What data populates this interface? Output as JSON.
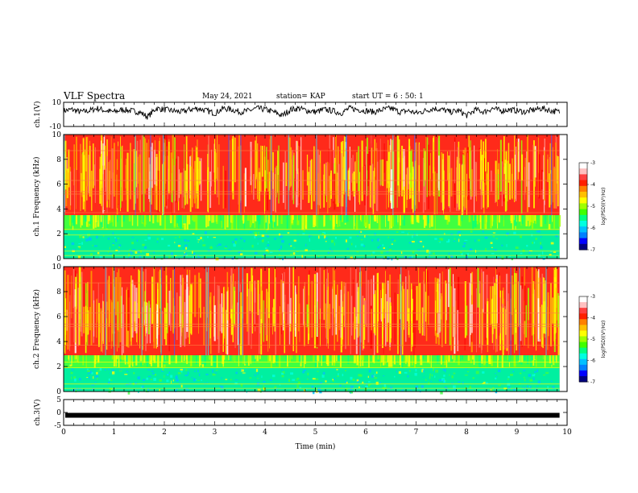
{
  "header": {
    "title": "VLF Spectra",
    "date": "May 24, 2021",
    "station": "station= KAP",
    "start": "start UT =  6 : 50: 1"
  },
  "chart_data": [
    {
      "type": "line",
      "panel": "ch1-waveform",
      "ylabel": "ch.1(V)",
      "ylim": [
        -10,
        10
      ],
      "y_ticks": [
        "10",
        "-10"
      ],
      "x_range": [
        0,
        10
      ],
      "data_end": 9.85,
      "y_values_approx": [
        3,
        4,
        2,
        3,
        5,
        3,
        2,
        4,
        3,
        2,
        -2,
        5,
        4,
        3,
        2,
        4,
        5,
        3,
        1,
        5,
        4,
        2,
        3,
        5,
        4,
        2,
        -1,
        4,
        5,
        3,
        2,
        4,
        3,
        1,
        5,
        4,
        3,
        2,
        4,
        5,
        2,
        3,
        1,
        3,
        5,
        4,
        2,
        3,
        -1,
        4,
        2,
        5,
        3,
        4,
        3,
        2,
        4,
        5,
        3,
        2
      ]
    },
    {
      "type": "heatmap",
      "panel": "ch1-spectrogram",
      "ylabel": "ch.1 Frequency  (kHz)",
      "ylim": [
        0,
        10
      ],
      "y_ticks": [
        "0",
        "2",
        "4",
        "6",
        "8",
        "10"
      ],
      "x_range": [
        0,
        10
      ],
      "data_end": 9.85,
      "band_edges_khz": [
        3.5,
        2.3
      ],
      "colorbar": {
        "label": "log(PSD)(V²/Hz)",
        "range": [
          -7,
          -3
        ],
        "ticks": [
          "-3",
          "-4",
          "-5",
          "-6",
          "-7"
        ]
      }
    },
    {
      "type": "heatmap",
      "panel": "ch2-spectrogram",
      "ylabel": "ch.2 Frequency  (kHz)",
      "ylim": [
        0,
        10
      ],
      "y_ticks": [
        "0",
        "2",
        "4",
        "6",
        "8",
        "10"
      ],
      "x_range": [
        0,
        10
      ],
      "data_end": 9.85,
      "band_edges_khz": [
        2.9,
        1.9
      ],
      "colorbar": {
        "label": "log(PSD)(V²/Hz)",
        "range": [
          -7,
          -3
        ],
        "ticks": [
          "-3",
          "-4",
          "-5",
          "-6",
          "-7"
        ]
      }
    },
    {
      "type": "line",
      "panel": "ch3-waveform",
      "ylabel": "ch.3(V)",
      "ylim": [
        -5,
        5
      ],
      "y_ticks": [
        "5",
        "0",
        "-5"
      ],
      "x_range": [
        0,
        10
      ],
      "data_end": 9.85,
      "y_values_approx": [
        -1.1,
        -1.1
      ]
    }
  ],
  "x_axis": {
    "label": "Time  (min)",
    "ticks": [
      "0",
      "1",
      "2",
      "3",
      "4",
      "5",
      "6",
      "7",
      "8",
      "9",
      "10"
    ]
  },
  "colors": {
    "scale": [
      "#000080",
      "#0000ff",
      "#0080ff",
      "#00c0ff",
      "#00ffe0",
      "#00ff80",
      "#40ff00",
      "#a0ff00",
      "#ffff00",
      "#ffc000",
      "#ff8000",
      "#ff2000",
      "#ff4040",
      "#ffc0c0",
      "#ffffff"
    ]
  }
}
